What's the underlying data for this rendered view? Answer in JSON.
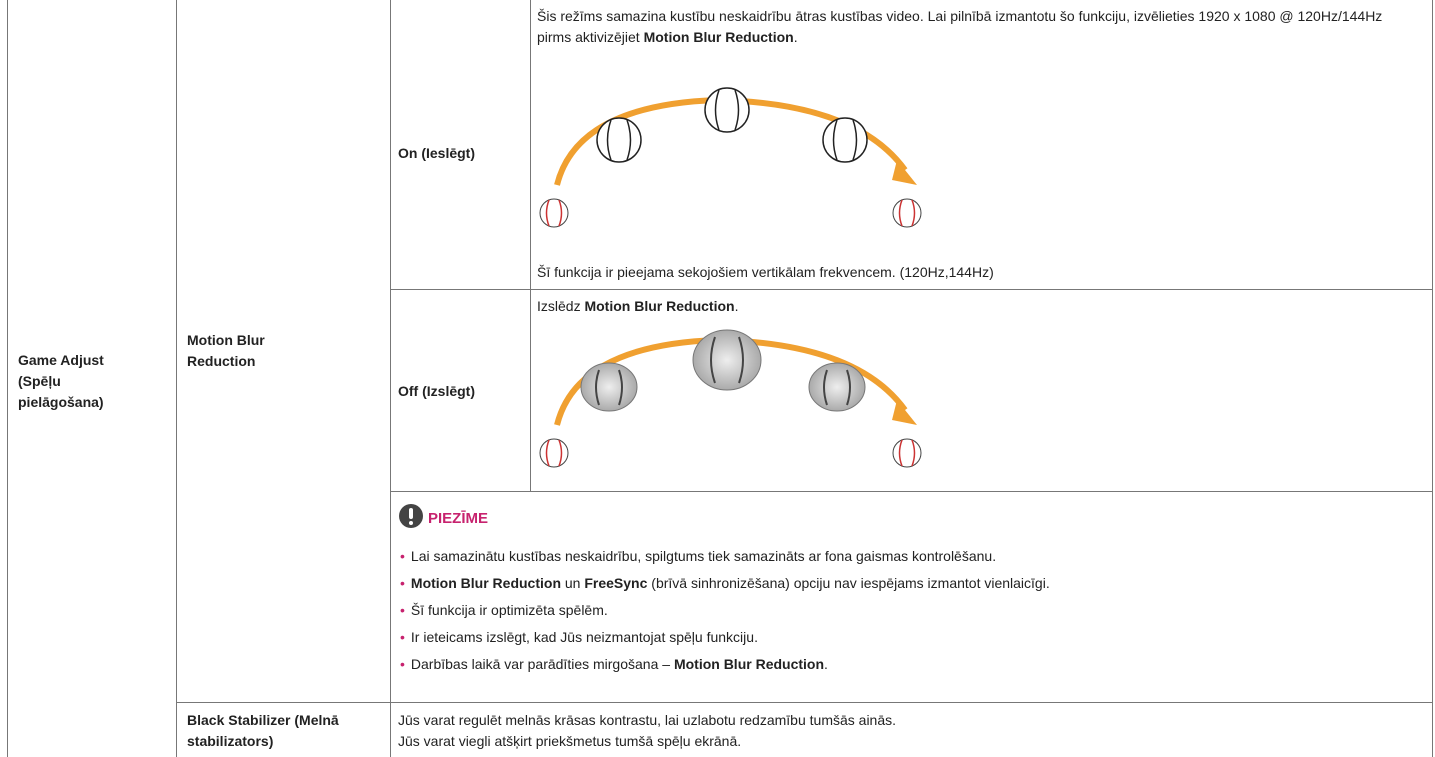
{
  "table": {
    "setting": "Game Adjust (Spēļu pielāgošana)",
    "motion_blur": {
      "label": "Motion Blur Reduction",
      "on": {
        "label": "On (Ieslēgt)",
        "description": [
          "Šis režīms samazina kustību neskaidrību ātras kustības video. Lai pilnībā izmantotu šo funkciju, izvēlieties 1920 x 1080 @ 120Hz/144Hz pirms aktivizējiet ",
          "Motion Blur Reduction",
          "."
        ],
        "footnote": "Šī funkcija ir pieejama sekojošiem vertikālam frekvencem. (120Hz,144Hz)"
      },
      "off": {
        "label": "Off (Izslēgt)",
        "description": [
          "Izslēdz ",
          "Motion Blur Reduction",
          "."
        ]
      },
      "note": {
        "title": "PIEZĪME",
        "items": [
          [
            "Lai samazinātu kustības neskaidrību, spilgtums tiek samazināts ar fona gaismas kontrolēšanu."
          ],
          [
            "Motion Blur Reduction",
            " un ",
            "FreeSync",
            " (brīvā sinhronizēšana) opciju nav iespējams izmantot vienlaicīgi."
          ],
          [
            "Šī funkcija ir optimizēta spēlēm."
          ],
          [
            "Ir ieteicams izslēgt, kad Jūs neizmantojat spēļu funkciju."
          ],
          [
            "Darbības laikā var parādīties mirgošana – ",
            "Motion Blur Reduction",
            "."
          ]
        ]
      }
    },
    "black_stabilizer": {
      "label": "Black Stabilizer (Melnā stabilizators)",
      "description": [
        "Jūs varat regulēt melnās krāsas kontrastu, lai uzlabotu redzamību tumšās ainās.",
        "Jūs varat viegli atšķirt priekšmetus tumšā spēļu ekrānā."
      ]
    }
  }
}
